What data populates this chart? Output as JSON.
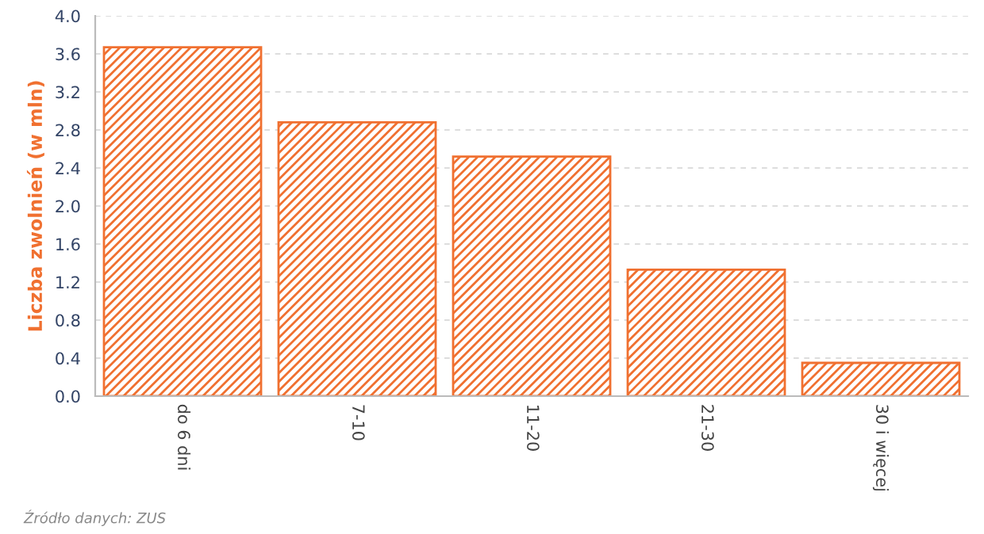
{
  "chart_data": {
    "type": "bar",
    "ylabel": "Liczba zwolnień (w mln)",
    "categories": [
      "do 6 dni",
      "7-10",
      "11-20",
      "21-30",
      "30 i więcej"
    ],
    "series": [
      {
        "color": "#f07030",
        "values": [
          3.67,
          2.88,
          2.52,
          1.33,
          0.35
        ]
      }
    ],
    "ylim": [
      0,
      4
    ],
    "yticks": [
      {
        "value": 0,
        "label": "0.0"
      },
      0.4,
      0.8,
      1.2,
      1.6,
      {
        "value": 2,
        "label": "2.0"
      },
      2.4,
      2.8,
      3.2,
      3.6,
      {
        "value": 4,
        "label": "4.0"
      }
    ],
    "grid": "y",
    "legend": false,
    "annotations": [
      "Źródło danych: ZUS"
    ]
  }
}
